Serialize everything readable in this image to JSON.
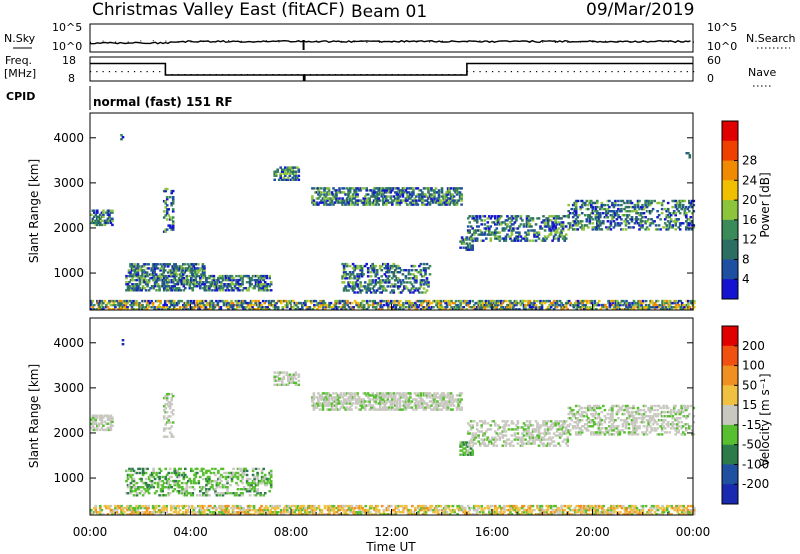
{
  "header": {
    "station": "Christmas Valley East (fitACF)",
    "beam": "Beam 01",
    "date": "09/Mar/2019"
  },
  "top_panels": {
    "nsky_label": "N.Sky",
    "nsky_ticks": [
      "10^5",
      "10^0"
    ],
    "nsearch_label": "N.Search",
    "nsearch_ticks": [
      "10^5",
      "10^0"
    ],
    "freq_label": "Freq.",
    "freq_unit": "[MHz]",
    "freq_ticks": [
      "18",
      "8"
    ],
    "nave_label": "Nave",
    "nave_ticks": [
      "60",
      "0"
    ],
    "cpid_label": "CPID",
    "cpid_text": "normal (fast) 151 RF"
  },
  "chart_data": [
    {
      "type": "heatmap",
      "panel": "power",
      "ylabel": "Slant Range [km]",
      "ylim": [
        180,
        4550
      ],
      "yticks": [
        1000,
        2000,
        3000,
        4000
      ],
      "xlim": [
        0,
        24
      ],
      "colorbar_label": "Power [dB]",
      "colorbar_ticks": [
        "4",
        "8",
        "12",
        "16",
        "20",
        "24",
        "28"
      ],
      "colorbar_colors": [
        "#1414d0",
        "#1f4fa0",
        "#2d6e63",
        "#3a8a5a",
        "#8cc43c",
        "#f0c000",
        "#f08a00",
        "#f04000",
        "#e00000"
      ],
      "echo_regions": [
        {
          "t": [
            0.0,
            0.9
          ],
          "r": [
            2050,
            2400
          ],
          "bin": 2
        },
        {
          "t": [
            1.2,
            1.3
          ],
          "r": [
            3950,
            4050
          ],
          "bin": 1
        },
        {
          "t": [
            2.9,
            3.3
          ],
          "r": [
            1900,
            2850
          ],
          "bin": 2
        },
        {
          "t": [
            1.4,
            7.2
          ],
          "r": [
            600,
            950
          ],
          "bin": 2
        },
        {
          "t": [
            1.5,
            4.5
          ],
          "r": [
            950,
            1200
          ],
          "bin": 2
        },
        {
          "t": [
            7.3,
            8.3
          ],
          "r": [
            3050,
            3350
          ],
          "bin": 1
        },
        {
          "t": [
            8.8,
            14.8
          ],
          "r": [
            2500,
            2900
          ],
          "bin": 1
        },
        {
          "t": [
            10.0,
            13.5
          ],
          "r": [
            550,
            1200
          ],
          "bin": 1
        },
        {
          "t": [
            14.7,
            15.2
          ],
          "r": [
            1500,
            1800
          ],
          "bin": 1
        },
        {
          "t": [
            15.0,
            19.0
          ],
          "r": [
            1700,
            2250
          ],
          "bin": 1
        },
        {
          "t": [
            19.0,
            24.0
          ],
          "r": [
            1950,
            2600
          ],
          "bin": 3
        },
        {
          "t": [
            23.7,
            23.9
          ],
          "r": [
            3550,
            3700
          ],
          "bin": 1
        },
        {
          "t": [
            0.0,
            24.0
          ],
          "r": [
            180,
            400
          ],
          "bin": 2
        }
      ]
    },
    {
      "type": "heatmap",
      "panel": "velocity",
      "ylabel": "Slant Range [km]",
      "ylim": [
        180,
        4550
      ],
      "yticks": [
        1000,
        2000,
        3000,
        4000
      ],
      "xlim": [
        0,
        24
      ],
      "xlabel": "Time UT",
      "xticks": [
        "00:00",
        "04:00",
        "08:00",
        "12:00",
        "16:00",
        "20:00",
        "00:00"
      ],
      "colorbar_label": "Velocity [m s⁻¹]",
      "colorbar_ticks": [
        "200",
        "100",
        "50",
        "15",
        "-15",
        "-50",
        "-100",
        "-200"
      ],
      "colorbar_colors": [
        "#1a2ab0",
        "#2050a0",
        "#2d7a4a",
        "#58c030",
        "#c8c8c0",
        "#f0c040",
        "#f09020",
        "#f05010",
        "#e00000"
      ],
      "echo_regions": [
        {
          "t": [
            0.0,
            0.9
          ],
          "r": [
            2050,
            2400
          ],
          "v": "gray"
        },
        {
          "t": [
            1.2,
            1.3
          ],
          "r": [
            3950,
            4050
          ],
          "v": "blue"
        },
        {
          "t": [
            2.9,
            3.3
          ],
          "r": [
            1900,
            2850
          ],
          "v": "gray"
        },
        {
          "t": [
            1.4,
            7.2
          ],
          "r": [
            600,
            1200
          ],
          "v": "green"
        },
        {
          "t": [
            7.3,
            8.3
          ],
          "r": [
            3050,
            3350
          ],
          "v": "gray"
        },
        {
          "t": [
            8.8,
            14.8
          ],
          "r": [
            2500,
            2900
          ],
          "v": "gray"
        },
        {
          "t": [
            14.7,
            15.2
          ],
          "r": [
            1500,
            1800
          ],
          "v": "green"
        },
        {
          "t": [
            15.0,
            19.0
          ],
          "r": [
            1700,
            2250
          ],
          "v": "gray"
        },
        {
          "t": [
            19.0,
            24.0
          ],
          "r": [
            1950,
            2600
          ],
          "v": "gray"
        },
        {
          "t": [
            0.0,
            24.0
          ],
          "r": [
            180,
            400
          ],
          "v": "orange"
        }
      ]
    }
  ],
  "colors": {
    "axis": "#000000",
    "background": "#ffffff"
  }
}
